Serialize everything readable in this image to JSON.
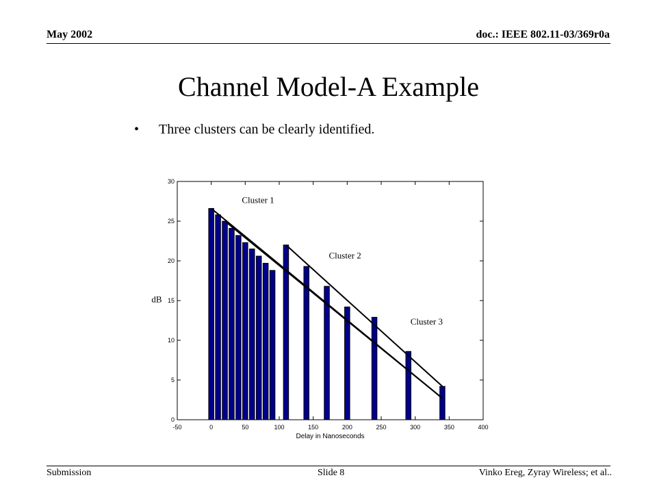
{
  "header": {
    "left": "May 2002",
    "right": "doc.: IEEE 802.11-03/369r0a"
  },
  "title": "Channel Model-A Example",
  "bullet": {
    "marker": "•",
    "text": "Three clusters can be clearly identified."
  },
  "footer": {
    "left": "Submission",
    "center": "Slide 8",
    "right": "Vinko Ereg, Zyray Wireless; et al.."
  },
  "chart_data": {
    "type": "bar",
    "xlabel": "Delay in Nanoseconds",
    "ylabel": "dB",
    "xlim": [
      -50,
      400
    ],
    "ylim": [
      0,
      30
    ],
    "xticks": [
      -50,
      0,
      50,
      100,
      150,
      200,
      250,
      300,
      350,
      400
    ],
    "yticks": [
      0,
      5,
      10,
      15,
      20,
      25,
      30
    ],
    "bar_color": "#00008b",
    "x": [
      0,
      10,
      20,
      30,
      40,
      50,
      60,
      70,
      80,
      90,
      110,
      140,
      170,
      200,
      240,
      290,
      340
    ],
    "values": [
      26.6,
      25.8,
      25.0,
      24.1,
      23.2,
      22.3,
      21.5,
      20.6,
      19.7,
      18.8,
      22.0,
      19.3,
      16.8,
      14.2,
      12.9,
      8.6,
      4.2
    ],
    "cluster_lines": [
      {
        "x": [
          0,
          340
        ],
        "y": [
          26.6,
          2.7
        ]
      },
      {
        "x": [
          110,
          340
        ],
        "y": [
          22.0,
          4.2
        ]
      },
      {
        "x": [
          20,
          340
        ],
        "y": [
          25.0,
          2.7
        ]
      }
    ],
    "annotations": [
      {
        "text": "Cluster 1",
        "x": 45,
        "y": 27.3
      },
      {
        "text": "Cluster 2",
        "x": 173,
        "y": 20.3
      },
      {
        "text": "Cluster 3",
        "x": 293,
        "y": 12.0
      }
    ]
  }
}
